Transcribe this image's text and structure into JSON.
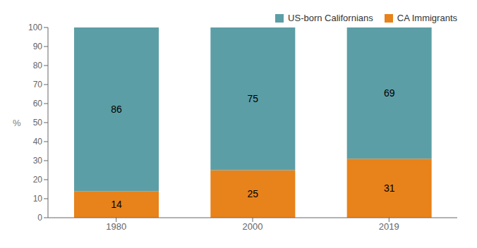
{
  "chart_data": {
    "type": "bar",
    "stacked": true,
    "ylabel": "%",
    "categories": [
      "1980",
      "2000",
      "2019"
    ],
    "series": [
      {
        "name": "CA Immigrants",
        "color": "#E8821A",
        "values": [
          14,
          25,
          31
        ]
      },
      {
        "name": "US-born Californians",
        "color": "#5C9EA6",
        "values": [
          86,
          75,
          69
        ]
      }
    ],
    "ylim": [
      0,
      100
    ],
    "yticks": [
      0,
      10,
      20,
      30,
      40,
      50,
      60,
      70,
      80,
      90,
      100
    ],
    "data_labels": true,
    "legend": "upper right",
    "grid": false
  }
}
